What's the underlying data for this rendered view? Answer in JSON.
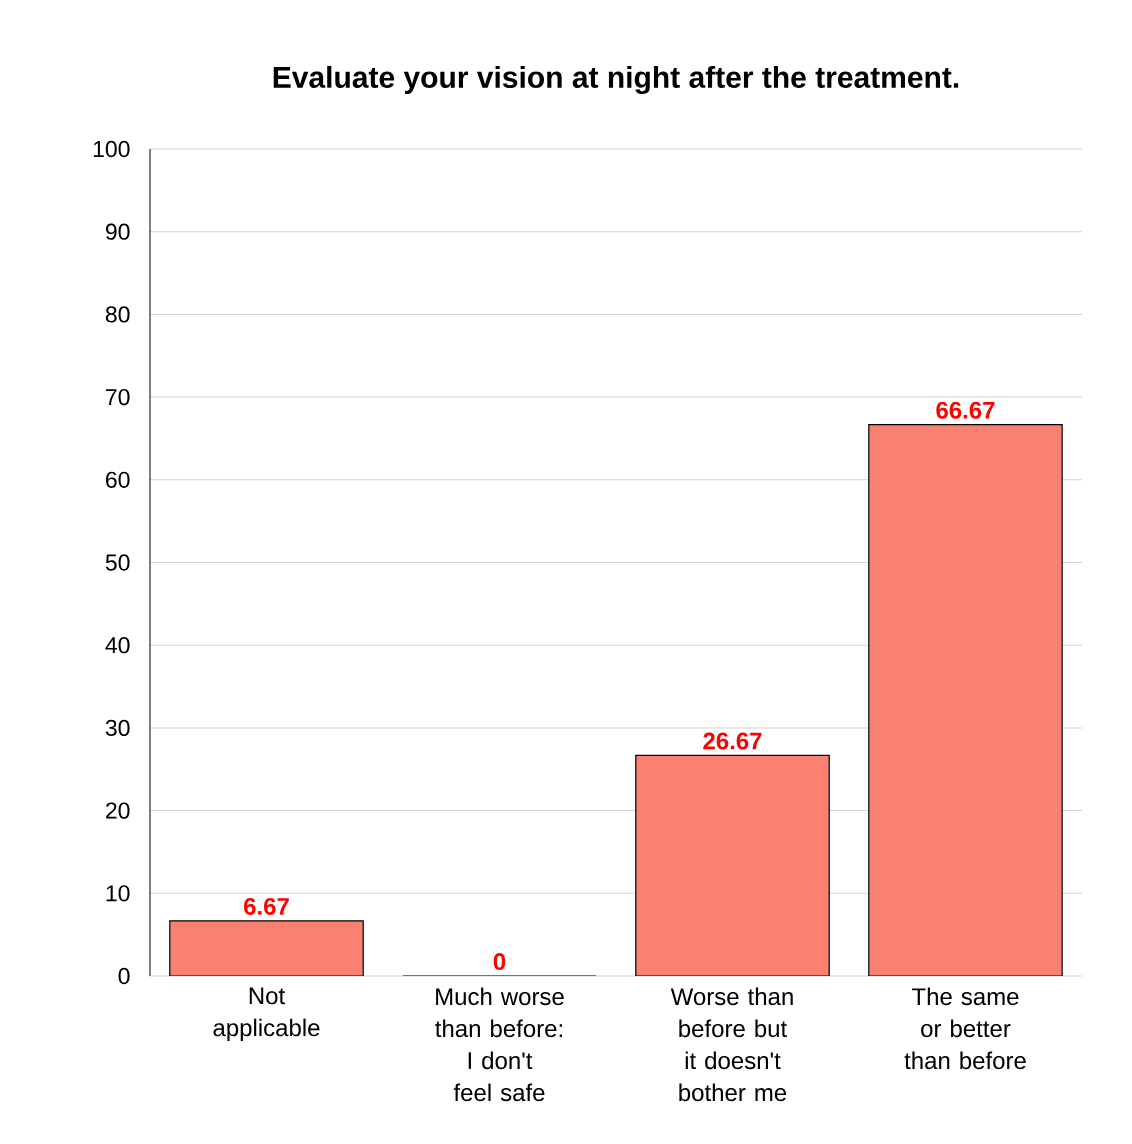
{
  "chart_data": {
    "type": "bar",
    "title": "Evaluate your vision at night after the treatment.",
    "categories": [
      "Not applicable",
      "Much worse than before: I don't feel safe",
      "Worse than before but it doesn't bother me",
      "The same or better than before"
    ],
    "values": [
      6.67,
      0,
      26.67,
      66.67
    ],
    "color": "#fa8072",
    "ylim": [
      0,
      100
    ],
    "yticks": [
      0,
      10,
      20,
      30,
      40,
      50,
      60,
      70,
      80,
      90,
      100
    ],
    "grid": "y",
    "data_labels": true
  }
}
